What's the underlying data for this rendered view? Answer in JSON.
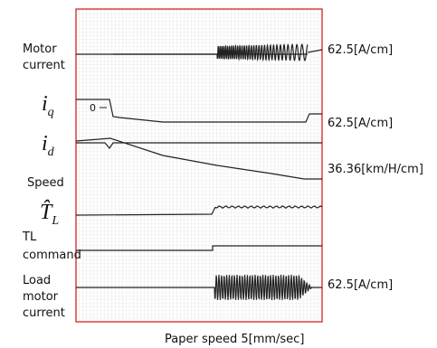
{
  "left_labels": {
    "motor_current": [
      "Motor",
      "current"
    ],
    "iq": {
      "symbol": "i",
      "subscript": "q"
    },
    "iq_zero": "0",
    "id": {
      "symbol": "i",
      "subscript": "d"
    },
    "speed": "Speed",
    "tl_hat": {
      "symbol": "T̂",
      "subscript": "L"
    },
    "tl_command": [
      "TL",
      "command"
    ],
    "load_motor_current": [
      "Load",
      "motor",
      "current"
    ]
  },
  "scales": [
    "62.5[A/cm]",
    "62.5[A/cm]",
    "36.36[km/H/cm]",
    "62.5[A/cm]"
  ],
  "footer": "Paper speed 5[mm/sec]"
}
